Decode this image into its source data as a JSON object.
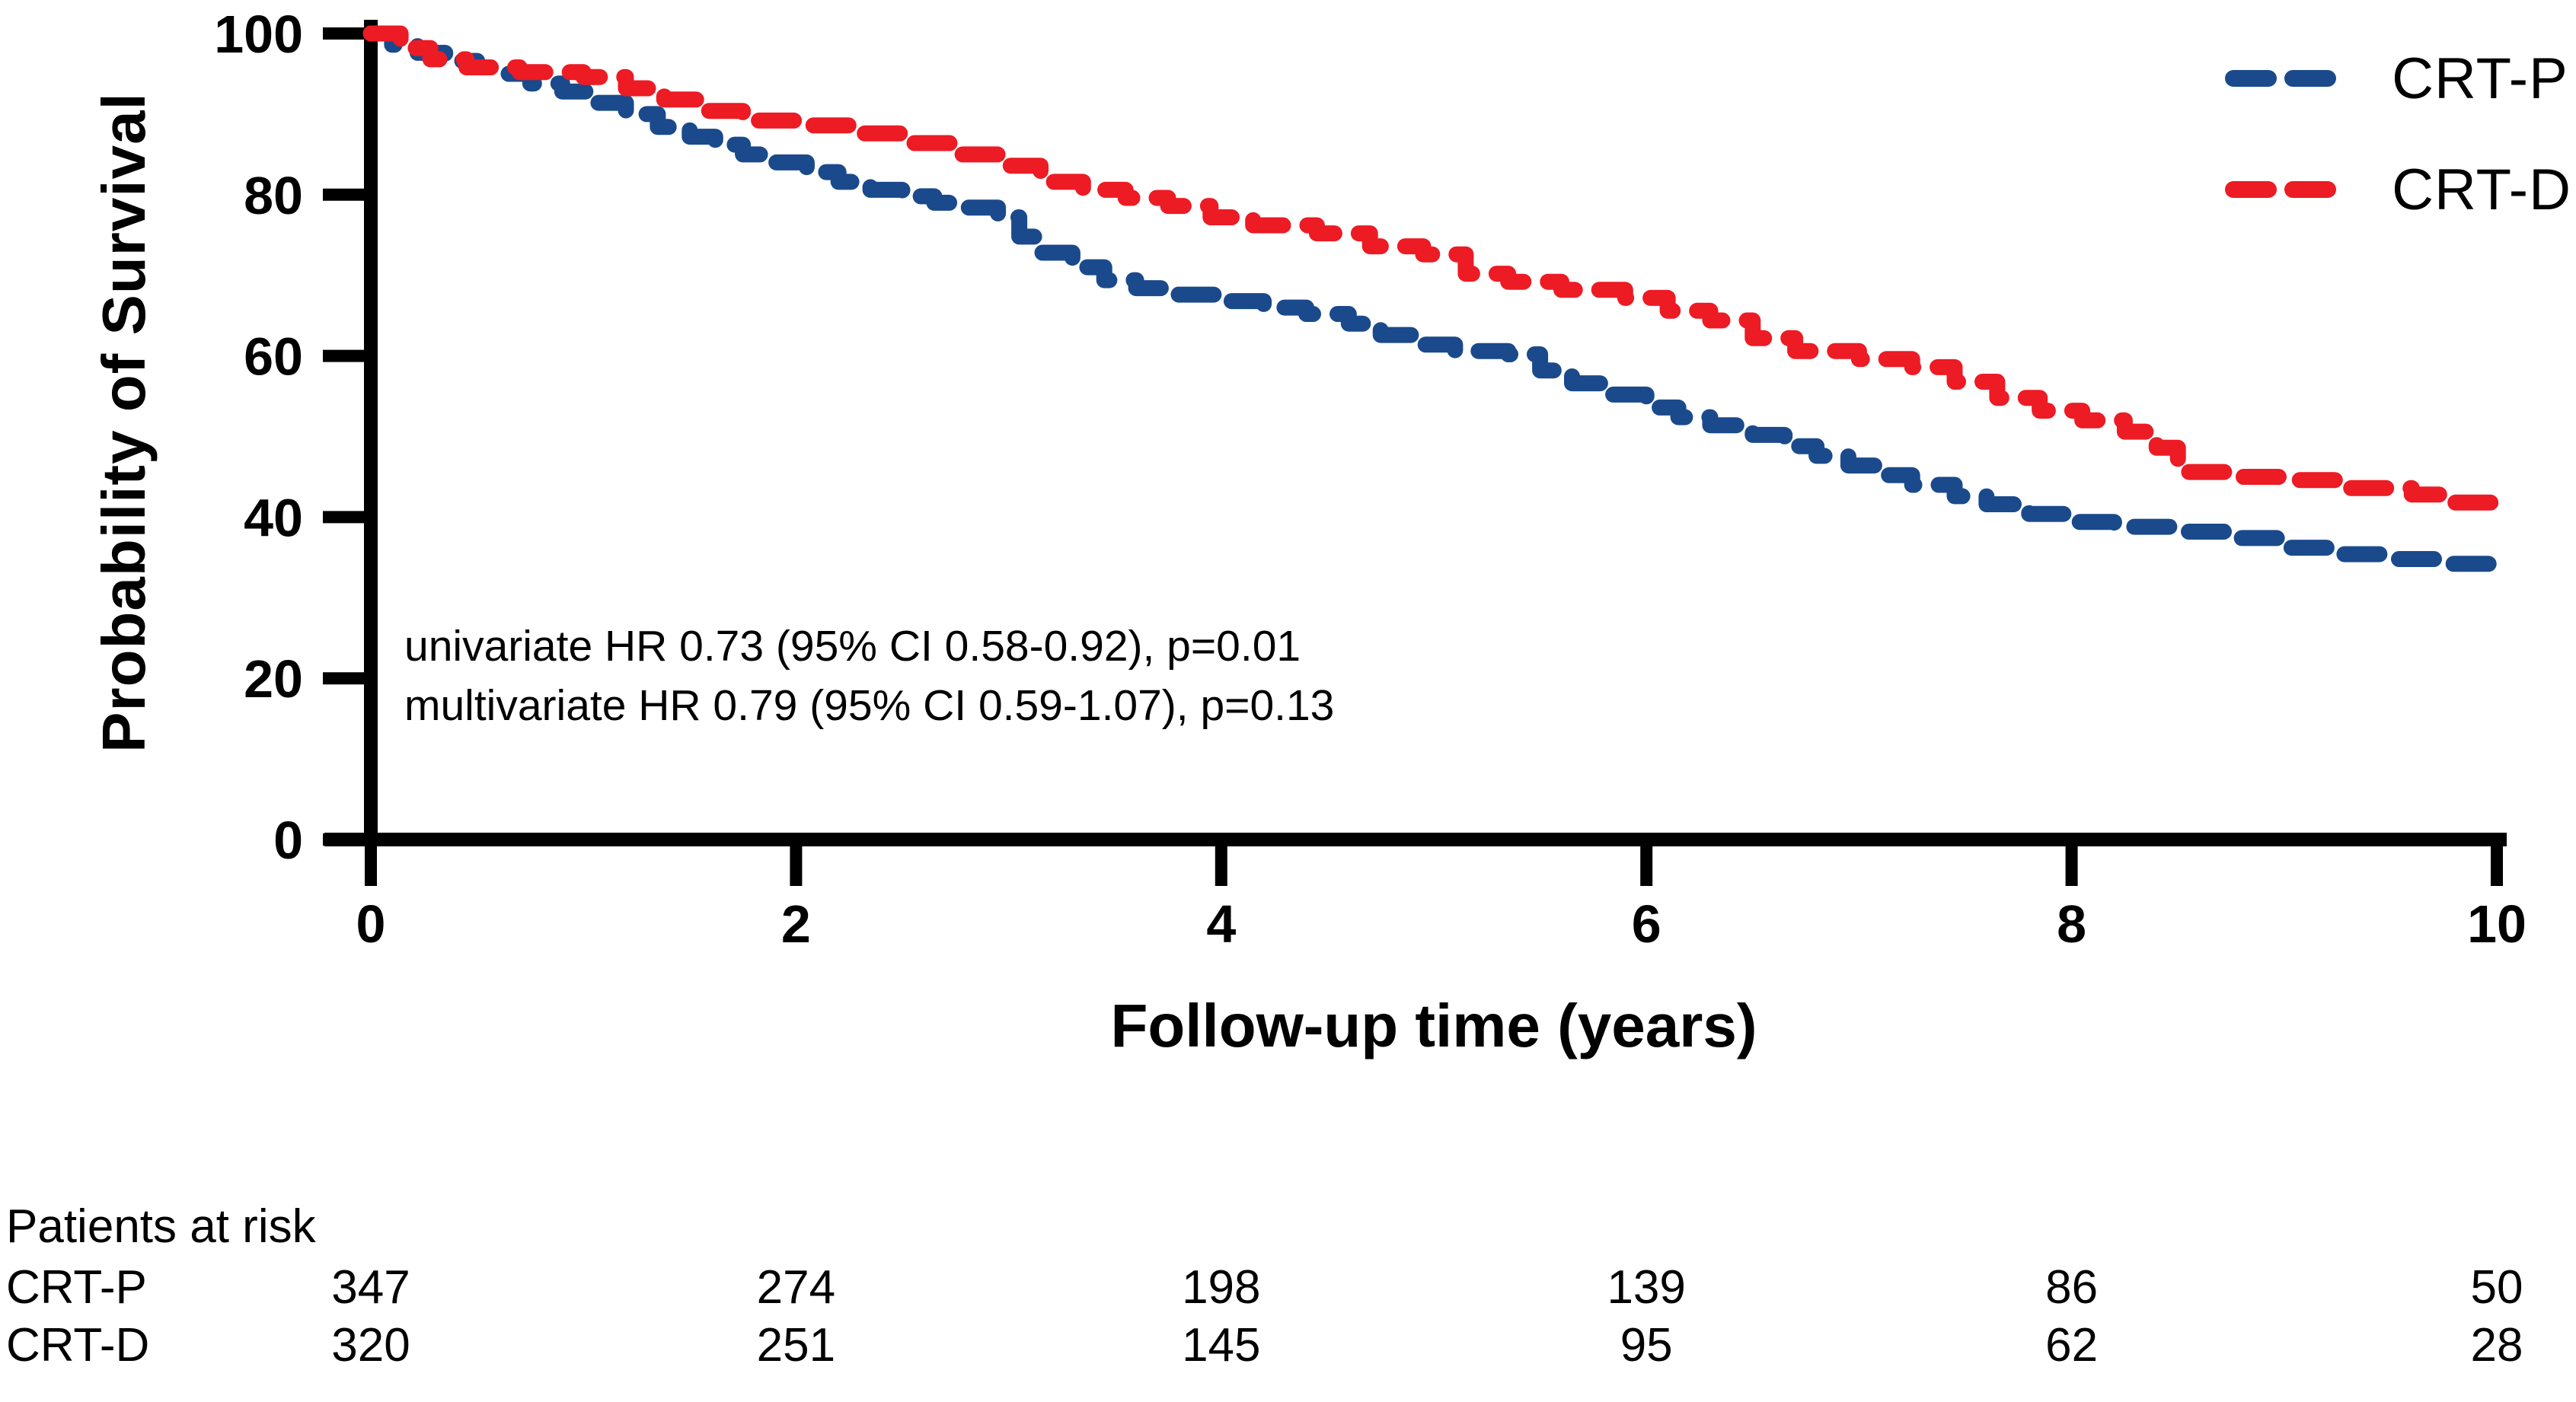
{
  "figure": {
    "y_axis_title": "Probability of Survival",
    "x_axis_title": "Follow-up time (years)",
    "annotation": {
      "line1": "univariate HR 0.73 (95% CI 0.58-0.92), p=0.01",
      "line2": "multivariate HR 0.79 (95% CI 0.59-1.07), p=0.13"
    }
  },
  "legend": {
    "items": [
      {
        "label": "CRT-P",
        "color": "#1A4A8C"
      },
      {
        "label": "CRT-D",
        "color": "#EC1B24"
      }
    ]
  },
  "risk_table": {
    "header": "Patients at risk",
    "time_points": [
      0,
      2,
      4,
      6,
      8,
      10
    ],
    "rows": [
      {
        "label": "CRT-P",
        "counts": [
          347,
          274,
          198,
          139,
          86,
          50
        ]
      },
      {
        "label": "CRT-D",
        "counts": [
          320,
          251,
          145,
          95,
          62,
          28
        ]
      }
    ]
  },
  "chart_data": {
    "type": "line",
    "subtype": "kaplan-meier-step",
    "title": "",
    "xlabel": "Follow-up time (years)",
    "ylabel": "Probability of Survival",
    "xlim": [
      0,
      10
    ],
    "ylim": [
      0,
      100
    ],
    "x_ticks": [
      0,
      2,
      4,
      6,
      8,
      10
    ],
    "y_ticks": [
      0,
      20,
      40,
      60,
      80,
      100
    ],
    "grid": false,
    "legend_position": "top-right",
    "line_style": "dashed",
    "annotations": [
      "univariate HR 0.73 (95% CI 0.58-0.92), p=0.01",
      "multivariate HR 0.79 (95% CI 0.59-1.07), p=0.13"
    ],
    "series": [
      {
        "name": "CRT-P",
        "color": "#1A4A8C",
        "points": [
          [
            0,
            100
          ],
          [
            0.1,
            98.6
          ],
          [
            0.22,
            97.6
          ],
          [
            0.35,
            96.6
          ],
          [
            0.5,
            95.8
          ],
          [
            0.62,
            95.0
          ],
          [
            0.75,
            93.8
          ],
          [
            0.9,
            92.8
          ],
          [
            1.05,
            91.4
          ],
          [
            1.2,
            90.0
          ],
          [
            1.35,
            88.4
          ],
          [
            1.5,
            87.2
          ],
          [
            1.62,
            86.2
          ],
          [
            1.75,
            85.0
          ],
          [
            1.9,
            84.0
          ],
          [
            2.05,
            82.8
          ],
          [
            2.2,
            81.6
          ],
          [
            2.35,
            80.6
          ],
          [
            2.5,
            79.8
          ],
          [
            2.65,
            79.0
          ],
          [
            2.8,
            78.4
          ],
          [
            2.95,
            77.2
          ],
          [
            3.05,
            74.8
          ],
          [
            3.15,
            72.8
          ],
          [
            3.3,
            71.0
          ],
          [
            3.45,
            69.4
          ],
          [
            3.6,
            68.4
          ],
          [
            3.8,
            67.6
          ],
          [
            4.0,
            66.8
          ],
          [
            4.2,
            66.0
          ],
          [
            4.4,
            65.2
          ],
          [
            4.6,
            64.0
          ],
          [
            4.75,
            62.6
          ],
          [
            4.9,
            61.4
          ],
          [
            5.1,
            60.6
          ],
          [
            5.35,
            60.2
          ],
          [
            5.5,
            58.2
          ],
          [
            5.65,
            56.6
          ],
          [
            5.8,
            55.2
          ],
          [
            6.0,
            53.6
          ],
          [
            6.15,
            52.4
          ],
          [
            6.3,
            51.4
          ],
          [
            6.5,
            50.2
          ],
          [
            6.65,
            48.8
          ],
          [
            6.8,
            47.6
          ],
          [
            6.95,
            46.4
          ],
          [
            7.1,
            45.2
          ],
          [
            7.25,
            44.0
          ],
          [
            7.45,
            42.6
          ],
          [
            7.6,
            41.6
          ],
          [
            7.8,
            40.4
          ],
          [
            8.0,
            39.4
          ],
          [
            8.2,
            38.8
          ],
          [
            8.5,
            38.2
          ],
          [
            8.8,
            37.4
          ],
          [
            9.0,
            36.2
          ],
          [
            9.2,
            35.4
          ],
          [
            9.5,
            34.8
          ],
          [
            9.75,
            34.2
          ],
          [
            10,
            33.8
          ]
        ]
      },
      {
        "name": "CRT-D",
        "color": "#EC1B24",
        "points": [
          [
            0,
            100
          ],
          [
            0.14,
            98.2
          ],
          [
            0.28,
            96.8
          ],
          [
            0.45,
            95.8
          ],
          [
            0.7,
            95.2
          ],
          [
            1.0,
            94.6
          ],
          [
            1.2,
            93.2
          ],
          [
            1.38,
            91.8
          ],
          [
            1.55,
            90.4
          ],
          [
            1.75,
            89.2
          ],
          [
            2.0,
            88.6
          ],
          [
            2.3,
            87.6
          ],
          [
            2.55,
            86.4
          ],
          [
            2.75,
            85.0
          ],
          [
            2.95,
            83.6
          ],
          [
            3.15,
            81.6
          ],
          [
            3.35,
            80.6
          ],
          [
            3.55,
            79.6
          ],
          [
            3.75,
            78.6
          ],
          [
            3.95,
            77.2
          ],
          [
            4.15,
            76.2
          ],
          [
            4.45,
            75.2
          ],
          [
            4.7,
            73.6
          ],
          [
            4.95,
            72.6
          ],
          [
            5.15,
            70.2
          ],
          [
            5.35,
            69.2
          ],
          [
            5.6,
            68.2
          ],
          [
            5.9,
            67.2
          ],
          [
            6.1,
            65.6
          ],
          [
            6.3,
            64.4
          ],
          [
            6.5,
            62.2
          ],
          [
            6.7,
            60.6
          ],
          [
            7.0,
            59.6
          ],
          [
            7.25,
            58.6
          ],
          [
            7.45,
            56.8
          ],
          [
            7.65,
            54.8
          ],
          [
            7.85,
            53.2
          ],
          [
            8.05,
            52.0
          ],
          [
            8.25,
            50.6
          ],
          [
            8.4,
            48.6
          ],
          [
            8.5,
            45.6
          ],
          [
            8.75,
            45.0
          ],
          [
            9.05,
            44.6
          ],
          [
            9.3,
            43.6
          ],
          [
            9.6,
            42.8
          ],
          [
            9.8,
            41.8
          ],
          [
            10,
            41.0
          ]
        ]
      }
    ]
  }
}
